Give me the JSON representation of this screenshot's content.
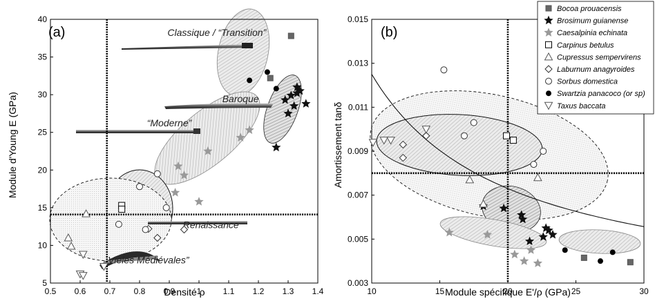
{
  "chart_data": [
    {
      "type": "scatter",
      "panel_label": "(a)",
      "xlabel": "Densité ρ",
      "ylabel": "Module d'Young E (GPa)",
      "xlim": [
        0.5,
        1.4
      ],
      "ylim": [
        5,
        40
      ],
      "xticks": [
        "0.5",
        "0.6",
        "0.7",
        "0.8",
        "0.9",
        "1",
        "1.1",
        "1.2",
        "1.3",
        "1.4"
      ],
      "yticks": [
        "5",
        "10",
        "15",
        "20",
        "25",
        "30",
        "35",
        "40"
      ],
      "reference_lines": {
        "x": 0.69,
        "y": 14.1
      },
      "annotations": [
        {
          "text": "Classique / “Transition”",
          "x": 1.06,
          "y": 37.8
        },
        {
          "text": "Baroque",
          "x": 1.14,
          "y": 29.0
        },
        {
          "text": "“Moderne”",
          "x": 0.9,
          "y": 25.8
        },
        {
          "text": "Renaissance",
          "x": 1.04,
          "y": 12.3
        },
        {
          "text": "Vièles Médiévales”",
          "x": 0.83,
          "y": 7.6
        }
      ],
      "series": [
        {
          "name": "Bocoa prouacensis",
          "marker": "square-filled",
          "points": [
            [
              1.31,
              37.8
            ],
            [
              1.24,
              32.2
            ]
          ]
        },
        {
          "name": "Brosimum guianense",
          "marker": "star-filled",
          "points": [
            [
              1.26,
              23.0
            ],
            [
              1.29,
              29.3
            ],
            [
              1.31,
              29.9
            ],
            [
              1.32,
              28.5
            ],
            [
              1.33,
              30.2
            ],
            [
              1.34,
              30.5
            ],
            [
              1.33,
              31.0
            ],
            [
              1.36,
              28.8
            ],
            [
              1.3,
              27.5
            ]
          ]
        },
        {
          "name": "Caesalpinia echinata",
          "marker": "star-gray",
          "points": [
            [
              0.92,
              17.0
            ],
            [
              0.93,
              20.5
            ],
            [
              0.95,
              19.3
            ],
            [
              1.0,
              15.8
            ],
            [
              1.03,
              22.5
            ],
            [
              1.14,
              24.3
            ],
            [
              1.17,
              25.3
            ]
          ]
        },
        {
          "name": "Carpinus betulus",
          "marker": "square-open",
          "points": [
            [
              0.74,
              15.3
            ],
            [
              0.74,
              14.8
            ]
          ]
        },
        {
          "name": "Cupressus sempervirens",
          "marker": "triangle-up-open",
          "points": [
            [
              0.56,
              11.0
            ],
            [
              0.57,
              9.9
            ],
            [
              0.62,
              14.2
            ]
          ]
        },
        {
          "name": "Laburnum anagyroides",
          "marker": "diamond-open",
          "points": [
            [
              0.83,
              12.2
            ],
            [
              0.86,
              11.0
            ],
            [
              0.95,
              12.1
            ]
          ]
        },
        {
          "name": "Sorbus domestica",
          "marker": "circle-open",
          "points": [
            [
              0.73,
              12.8
            ],
            [
              0.8,
              17.8
            ],
            [
              0.82,
              12.1
            ],
            [
              0.86,
              19.5
            ],
            [
              0.89,
              15.0
            ]
          ]
        },
        {
          "name": "Swartzia panacoco (or sp)",
          "marker": "circle-filled",
          "points": [
            [
              1.17,
              31.9
            ],
            [
              1.23,
              33.0
            ],
            [
              1.26,
              30.8
            ]
          ]
        },
        {
          "name": "Taxus baccata",
          "marker": "triangle-down-open",
          "points": [
            [
              0.61,
              8.8
            ],
            [
              0.6,
              6.2
            ],
            [
              0.61,
              6.0
            ],
            [
              0.68,
              7.2
            ]
          ]
        }
      ]
    },
    {
      "type": "scatter",
      "panel_label": "(b)",
      "xlabel": "Module spécifique E'/ρ (GPa)",
      "ylabel": "Amortissement tanδ",
      "xlim": [
        10,
        30
      ],
      "ylim": [
        0.003,
        0.015
      ],
      "xticks": [
        "10",
        "15",
        "20",
        "25",
        "30"
      ],
      "yticks": [
        "0.003",
        "0.005",
        "0.007",
        "0.009",
        "0.011",
        "0.013",
        "0.015"
      ],
      "reference_lines": {
        "x": 20,
        "y": 0.008
      },
      "legend_position": "top-right",
      "series": [
        {
          "name": "Bocoa prouacensis",
          "marker": "square-filled",
          "points": [
            [
              25.6,
              0.00415
            ],
            [
              29.0,
              0.00395
            ]
          ]
        },
        {
          "name": "Brosimum guianense",
          "marker": "star-filled",
          "points": [
            [
              18.2,
              0.0065
            ],
            [
              19.7,
              0.0064
            ],
            [
              21.0,
              0.0061
            ],
            [
              21.1,
              0.0059
            ],
            [
              21.6,
              0.0049
            ],
            [
              22.8,
              0.0055
            ],
            [
              23.0,
              0.0054
            ],
            [
              23.3,
              0.0052
            ],
            [
              22.6,
              0.0051
            ]
          ]
        },
        {
          "name": "Caesalpinia echinata",
          "marker": "star-gray",
          "points": [
            [
              15.7,
              0.0053
            ],
            [
              18.5,
              0.0052
            ],
            [
              20.5,
              0.0043
            ],
            [
              21.2,
              0.004
            ],
            [
              21.7,
              0.0045
            ],
            [
              22.2,
              0.0039
            ]
          ]
        },
        {
          "name": "Carpinus betulus",
          "marker": "square-open",
          "points": [
            [
              19.9,
              0.0097
            ],
            [
              20.4,
              0.0095
            ]
          ]
        },
        {
          "name": "Cupressus sempervirens",
          "marker": "triangle-up-open",
          "points": [
            [
              17.2,
              0.0077
            ],
            [
              18.2,
              0.0066
            ],
            [
              22.2,
              0.0078
            ]
          ]
        },
        {
          "name": "Laburnum anagyroides",
          "marker": "diamond-open",
          "points": [
            [
              12.3,
              0.0093
            ],
            [
              12.3,
              0.0087
            ],
            [
              14.0,
              0.0097
            ]
          ]
        },
        {
          "name": "Sorbus domestica",
          "marker": "circle-open",
          "points": [
            [
              15.3,
              0.0127
            ],
            [
              16.8,
              0.0097
            ],
            [
              17.5,
              0.0103
            ],
            [
              21.9,
              0.0084
            ],
            [
              22.6,
              0.009
            ]
          ]
        },
        {
          "name": "Swartzia panacoco (or sp)",
          "marker": "circle-filled",
          "points": [
            [
              24.2,
              0.0045
            ],
            [
              26.8,
              0.004
            ],
            [
              27.7,
              0.0044
            ]
          ]
        },
        {
          "name": "Taxus baccata",
          "marker": "triangle-down-open",
          "points": [
            [
              10.1,
              0.0094
            ],
            [
              10.9,
              0.0095
            ],
            [
              11.4,
              0.0095
            ],
            [
              14.0,
              0.01
            ]
          ]
        }
      ]
    }
  ]
}
